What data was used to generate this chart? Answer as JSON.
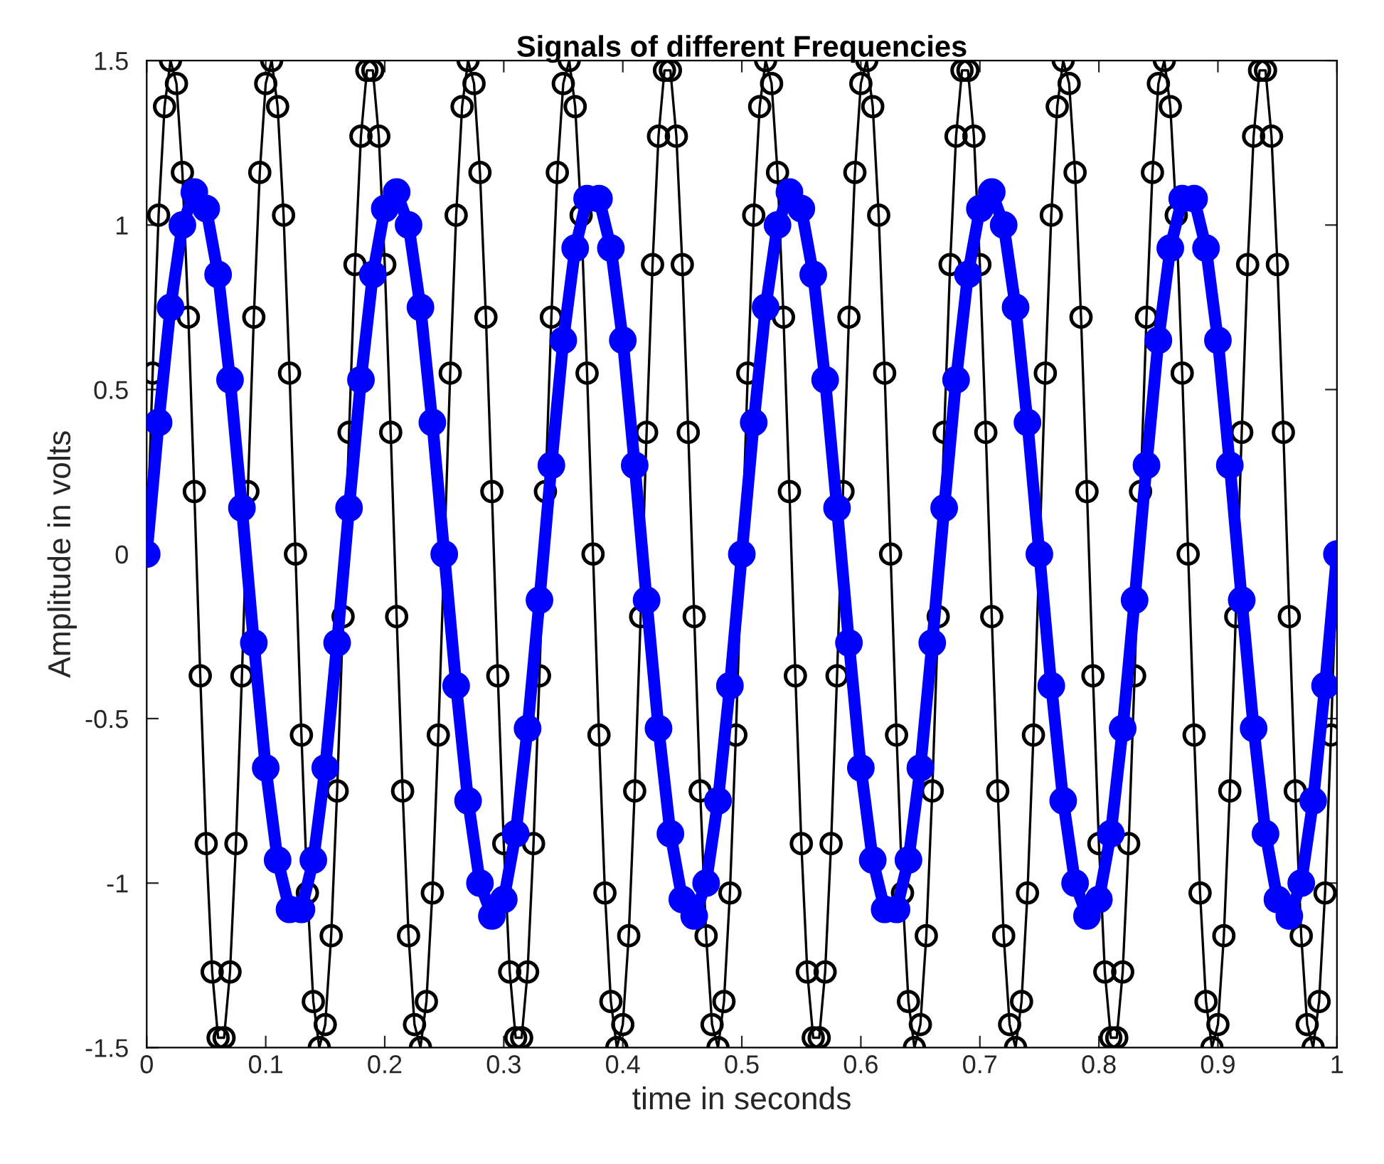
{
  "chart_data": {
    "type": "line",
    "title": "Signals of different Frequencies",
    "xlabel": "time in seconds",
    "ylabel": "Amplitude in volts",
    "xlim": [
      0,
      1
    ],
    "xticks": [
      0,
      0.1,
      0.2,
      0.3,
      0.4,
      0.5,
      0.6,
      0.7,
      0.8,
      0.9,
      1
    ],
    "ylim": [
      -1.5,
      1.5
    ],
    "yticks": [
      -1.5,
      -1,
      -0.5,
      0,
      0.5,
      1,
      1.5
    ],
    "grid": false,
    "marker": "circle",
    "line_style": "solid",
    "series": [
      {
        "color": "#000000",
        "x": [
          0,
          0.005,
          0.01,
          0.015,
          0.02,
          0.025,
          0.03,
          0.035,
          0.04,
          0.045,
          0.05,
          0.055,
          0.06,
          0.065,
          0.07,
          0.075,
          0.08,
          0.085,
          0.09,
          0.095,
          0.1,
          0.105,
          0.11,
          0.115,
          0.12,
          0.125,
          0.13,
          0.135,
          0.14,
          0.145,
          0.15,
          0.155,
          0.16,
          0.165,
          0.17,
          0.175,
          0.18,
          0.185,
          0.19,
          0.195,
          0.2,
          0.205,
          0.21,
          0.215,
          0.22,
          0.225,
          0.23,
          0.235,
          0.24,
          0.245,
          0.25,
          0.255,
          0.26,
          0.265,
          0.27,
          0.275,
          0.28,
          0.285,
          0.29,
          0.295,
          0.3,
          0.305,
          0.31,
          0.315,
          0.32,
          0.325,
          0.33,
          0.335,
          0.34,
          0.345,
          0.35,
          0.355,
          0.36,
          0.365,
          0.37,
          0.375,
          0.38,
          0.385,
          0.39,
          0.395,
          0.4,
          0.405,
          0.41,
          0.415,
          0.42,
          0.425,
          0.43,
          0.435,
          0.44,
          0.445,
          0.45,
          0.455,
          0.46,
          0.465,
          0.47,
          0.475,
          0.48,
          0.485,
          0.49,
          0.495,
          0.5,
          0.505,
          0.51,
          0.515,
          0.52,
          0.525,
          0.53,
          0.535,
          0.54,
          0.545,
          0.55,
          0.555,
          0.56,
          0.565,
          0.57,
          0.575,
          0.58,
          0.585,
          0.59,
          0.595,
          0.6,
          0.605,
          0.61,
          0.615,
          0.62,
          0.625,
          0.63,
          0.635,
          0.64,
          0.645,
          0.65,
          0.655,
          0.66,
          0.665,
          0.67,
          0.675,
          0.68,
          0.685,
          0.69,
          0.695,
          0.7,
          0.705,
          0.71,
          0.715,
          0.72,
          0.725,
          0.73,
          0.735,
          0.74,
          0.745,
          0.75,
          0.755,
          0.76,
          0.765,
          0.77,
          0.775,
          0.78,
          0.785,
          0.79,
          0.795,
          0.8,
          0.805,
          0.81,
          0.815,
          0.82,
          0.825,
          0.83,
          0.835,
          0.84,
          0.845,
          0.85,
          0.855,
          0.86,
          0.865,
          0.87,
          0.875,
          0.88,
          0.885,
          0.89,
          0.895,
          0.9,
          0.905,
          0.91,
          0.915,
          0.92,
          0.925,
          0.93,
          0.935,
          0.94,
          0.945,
          0.95,
          0.955,
          0.96,
          0.965,
          0.97,
          0.975,
          0.98,
          0.985,
          0.99,
          0.995,
          1
        ],
        "values": [
          0,
          0.55,
          1.03,
          1.36,
          1.5,
          1.43,
          1.16,
          0.72,
          0.19,
          -0.37,
          -0.88,
          -1.27,
          -1.47,
          -1.47,
          -1.27,
          -0.88,
          -0.37,
          0.19,
          0.72,
          1.16,
          1.43,
          1.5,
          1.36,
          1.03,
          0.55,
          0,
          -0.55,
          -1.03,
          -1.36,
          -1.5,
          -1.43,
          -1.16,
          -0.72,
          -0.19,
          0.37,
          0.88,
          1.27,
          1.47,
          1.47,
          1.27,
          0.88,
          0.37,
          -0.19,
          -0.72,
          -1.16,
          -1.43,
          -1.5,
          -1.36,
          -1.03,
          -0.55,
          0,
          0.55,
          1.03,
          1.36,
          1.5,
          1.43,
          1.16,
          0.72,
          0.19,
          -0.37,
          -0.88,
          -1.27,
          -1.47,
          -1.47,
          -1.27,
          -0.88,
          -0.37,
          0.19,
          0.72,
          1.16,
          1.43,
          1.5,
          1.36,
          1.03,
          0.55,
          0,
          -0.55,
          -1.03,
          -1.36,
          -1.5,
          -1.43,
          -1.16,
          -0.72,
          -0.19,
          0.37,
          0.88,
          1.27,
          1.47,
          1.47,
          1.27,
          0.88,
          0.37,
          -0.19,
          -0.72,
          -1.16,
          -1.43,
          -1.5,
          -1.36,
          -1.03,
          -0.55,
          0,
          0.55,
          1.03,
          1.36,
          1.5,
          1.43,
          1.16,
          0.72,
          0.19,
          -0.37,
          -0.88,
          -1.27,
          -1.47,
          -1.47,
          -1.27,
          -0.88,
          -0.37,
          0.19,
          0.72,
          1.16,
          1.43,
          1.5,
          1.36,
          1.03,
          0.55,
          0,
          -0.55,
          -1.03,
          -1.36,
          -1.5,
          -1.43,
          -1.16,
          -0.72,
          -0.19,
          0.37,
          0.88,
          1.27,
          1.47,
          1.47,
          1.27,
          0.88,
          0.37,
          -0.19,
          -0.72,
          -1.16,
          -1.43,
          -1.5,
          -1.36,
          -1.03,
          -0.55,
          0,
          0.55,
          1.03,
          1.36,
          1.5,
          1.43,
          1.16,
          0.72,
          0.19,
          -0.37,
          -0.88,
          -1.27,
          -1.47,
          -1.47,
          -1.27,
          -0.88,
          -0.37,
          0.19,
          0.72,
          1.16,
          1.43,
          1.5,
          1.36,
          1.03,
          0.55,
          0,
          -0.55,
          -1.03,
          -1.36,
          -1.5,
          -1.43,
          -1.16,
          -0.72,
          -0.19,
          0.37,
          0.88,
          1.27,
          1.47,
          1.47,
          1.27,
          0.88,
          0.37,
          -0.19,
          -0.72,
          -1.16,
          -1.43,
          -1.5,
          -1.36,
          -1.03,
          -0.55,
          0
        ]
      },
      {
        "color": "#0000ff",
        "x": [
          0,
          0.01,
          0.02,
          0.03,
          0.04,
          0.05,
          0.06,
          0.07,
          0.08,
          0.09,
          0.1,
          0.11,
          0.12,
          0.13,
          0.14,
          0.15,
          0.16,
          0.17,
          0.18,
          0.19,
          0.2,
          0.21,
          0.22,
          0.23,
          0.24,
          0.25,
          0.26,
          0.27,
          0.28,
          0.29,
          0.3,
          0.31,
          0.32,
          0.33,
          0.34,
          0.35,
          0.36,
          0.37,
          0.38,
          0.39,
          0.4,
          0.41,
          0.42,
          0.43,
          0.44,
          0.45,
          0.46,
          0.47,
          0.48,
          0.49,
          0.5,
          0.51,
          0.52,
          0.53,
          0.54,
          0.55,
          0.56,
          0.57,
          0.58,
          0.59,
          0.6,
          0.61,
          0.62,
          0.63,
          0.64,
          0.65,
          0.66,
          0.67,
          0.68,
          0.69,
          0.7,
          0.71,
          0.72,
          0.73,
          0.74,
          0.75,
          0.76,
          0.77,
          0.78,
          0.79,
          0.8,
          0.81,
          0.82,
          0.83,
          0.84,
          0.85,
          0.86,
          0.87,
          0.88,
          0.89,
          0.9,
          0.91,
          0.92,
          0.93,
          0.94,
          0.95,
          0.96,
          0.97,
          0.98,
          0.99,
          1
        ],
        "values": [
          0,
          0.4,
          0.75,
          1,
          1.1,
          1.05,
          0.85,
          0.53,
          0.14,
          -0.27,
          -0.65,
          -0.93,
          -1.08,
          -1.08,
          -0.93,
          -0.65,
          -0.27,
          0.14,
          0.53,
          0.85,
          1.05,
          1.1,
          1,
          0.75,
          0.4,
          0,
          -0.4,
          -0.75,
          -1,
          -1.1,
          -1.05,
          -0.85,
          -0.53,
          -0.14,
          0.27,
          0.65,
          0.93,
          1.08,
          1.08,
          0.93,
          0.65,
          0.27,
          -0.14,
          -0.53,
          -0.85,
          -1.05,
          -1.1,
          -1,
          -0.75,
          -0.4,
          0,
          0.4,
          0.75,
          1,
          1.1,
          1.05,
          0.85,
          0.53,
          0.14,
          -0.27,
          -0.65,
          -0.93,
          -1.08,
          -1.08,
          -0.93,
          -0.65,
          -0.27,
          0.14,
          0.53,
          0.85,
          1.05,
          1.1,
          1,
          0.75,
          0.4,
          0,
          -0.4,
          -0.75,
          -1,
          -1.1,
          -1.05,
          -0.85,
          -0.53,
          -0.14,
          0.27,
          0.65,
          0.93,
          1.08,
          1.08,
          0.93,
          0.65,
          0.27,
          -0.14,
          -0.53,
          -0.85,
          -1.05,
          -1.1,
          -1,
          -0.75,
          -0.4,
          0
        ]
      }
    ]
  }
}
